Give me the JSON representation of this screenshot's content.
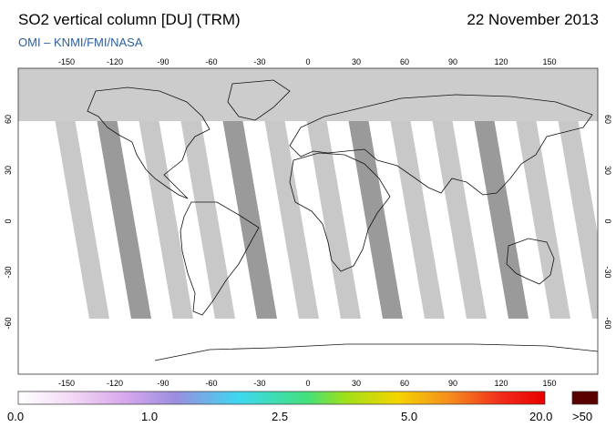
{
  "header": {
    "title": "SO2 vertical column [DU] (TRM)",
    "date": "22 November 2013",
    "credit": "OMI  –  KNMI/FMI/NASA"
  },
  "map": {
    "lon_ticks": [
      "-150",
      "-120",
      "-90",
      "-60",
      "-30",
      "0",
      "30",
      "60",
      "90",
      "120",
      "150"
    ],
    "lat_ticks": [
      "60",
      "30",
      "0",
      "-30",
      "-60"
    ],
    "colors": {
      "land": "#ffffff",
      "no_data": "#c8c8c8",
      "polar_night": "#cccccc",
      "swath_dark": "#9a9a9a"
    }
  },
  "colorbar": {
    "labels": [
      "0.0",
      "1.0",
      "2.5",
      "5.0",
      "20.0",
      ">50"
    ],
    "stops": [
      "#ffffff",
      "#f3d9f5",
      "#d8a8ec",
      "#9a8ee0",
      "#3cd8f0",
      "#43e07a",
      "#9ee01a",
      "#f5d400",
      "#f58c1e",
      "#f02a1a",
      "#e80000"
    ],
    "overflow_color": "#5a0000"
  }
}
